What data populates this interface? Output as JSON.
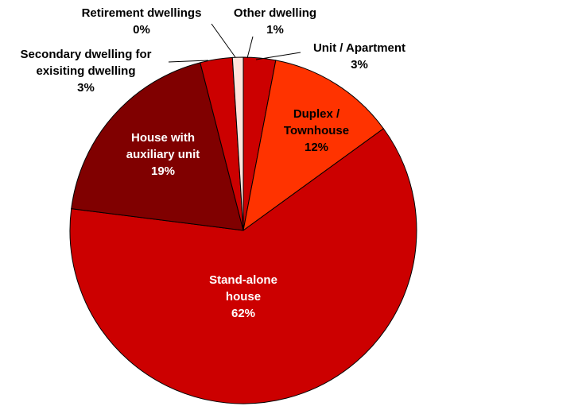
{
  "chart_data": {
    "type": "pie",
    "categories": [
      "Unit / Apartment",
      "Duplex / Townhouse",
      "Stand-alone house",
      "House with auxiliary unit",
      "Secondary dwelling for exisiting dwelling",
      "Retirement dwellings",
      "Other dwelling"
    ],
    "values": [
      3,
      12,
      62,
      19,
      3,
      0,
      1
    ],
    "value_labels": [
      "3%",
      "12%",
      "62%",
      "19%",
      "3%",
      "0%",
      "1%"
    ],
    "colors": [
      "#cc0000",
      "#ff3300",
      "#cc0000",
      "#800000",
      "#cc0000",
      "#ffe4dc",
      "#ffe4dc"
    ]
  }
}
